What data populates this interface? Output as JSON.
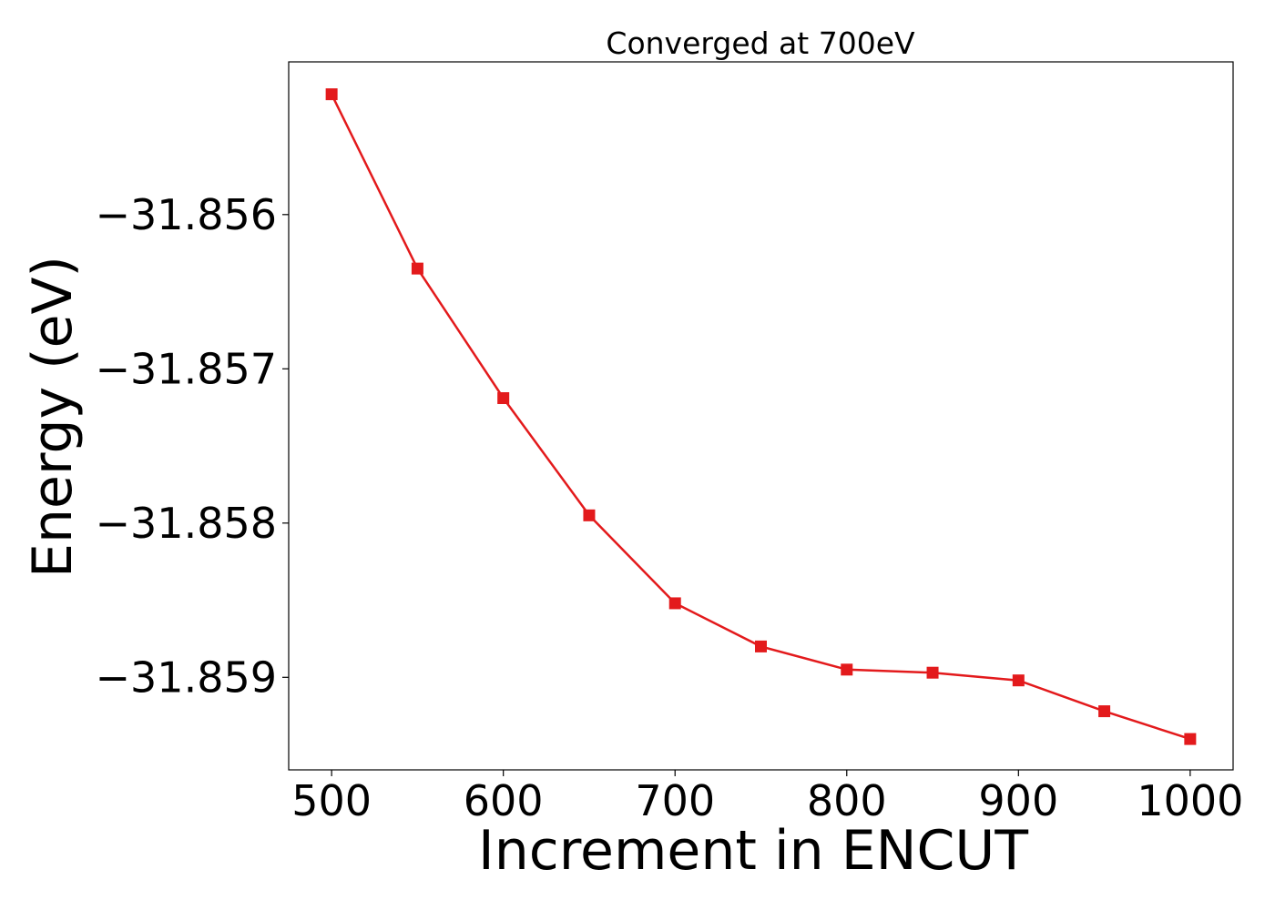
{
  "chart_data": {
    "type": "line",
    "title": "Converged at 700eV",
    "xlabel": "Increment in ENCUT",
    "ylabel": "Energy (eV)",
    "x": [
      500,
      550,
      600,
      650,
      700,
      750,
      800,
      850,
      900,
      950,
      1000
    ],
    "series": [
      {
        "values": [
          -31.85522,
          -31.85635,
          -31.85719,
          -31.85795,
          -31.85852,
          -31.8588,
          -31.85895,
          -31.85897,
          -31.85902,
          -31.85922,
          -31.8594
        ],
        "color": "#e31a1c",
        "marker": "square"
      }
    ],
    "xlim": [
      475,
      1025
    ],
    "ylim": [
      -31.8596,
      -31.85501
    ],
    "xticks": [
      500,
      600,
      700,
      800,
      900,
      1000
    ],
    "yticks": [
      -31.856,
      -31.857,
      -31.858,
      -31.859
    ],
    "xtick_labels": [
      "500",
      "600",
      "700",
      "800",
      "900",
      "1000"
    ],
    "ytick_labels": [
      "−31.856",
      "−31.857",
      "−31.858",
      "−31.859"
    ],
    "grid": false,
    "legend": "none"
  }
}
